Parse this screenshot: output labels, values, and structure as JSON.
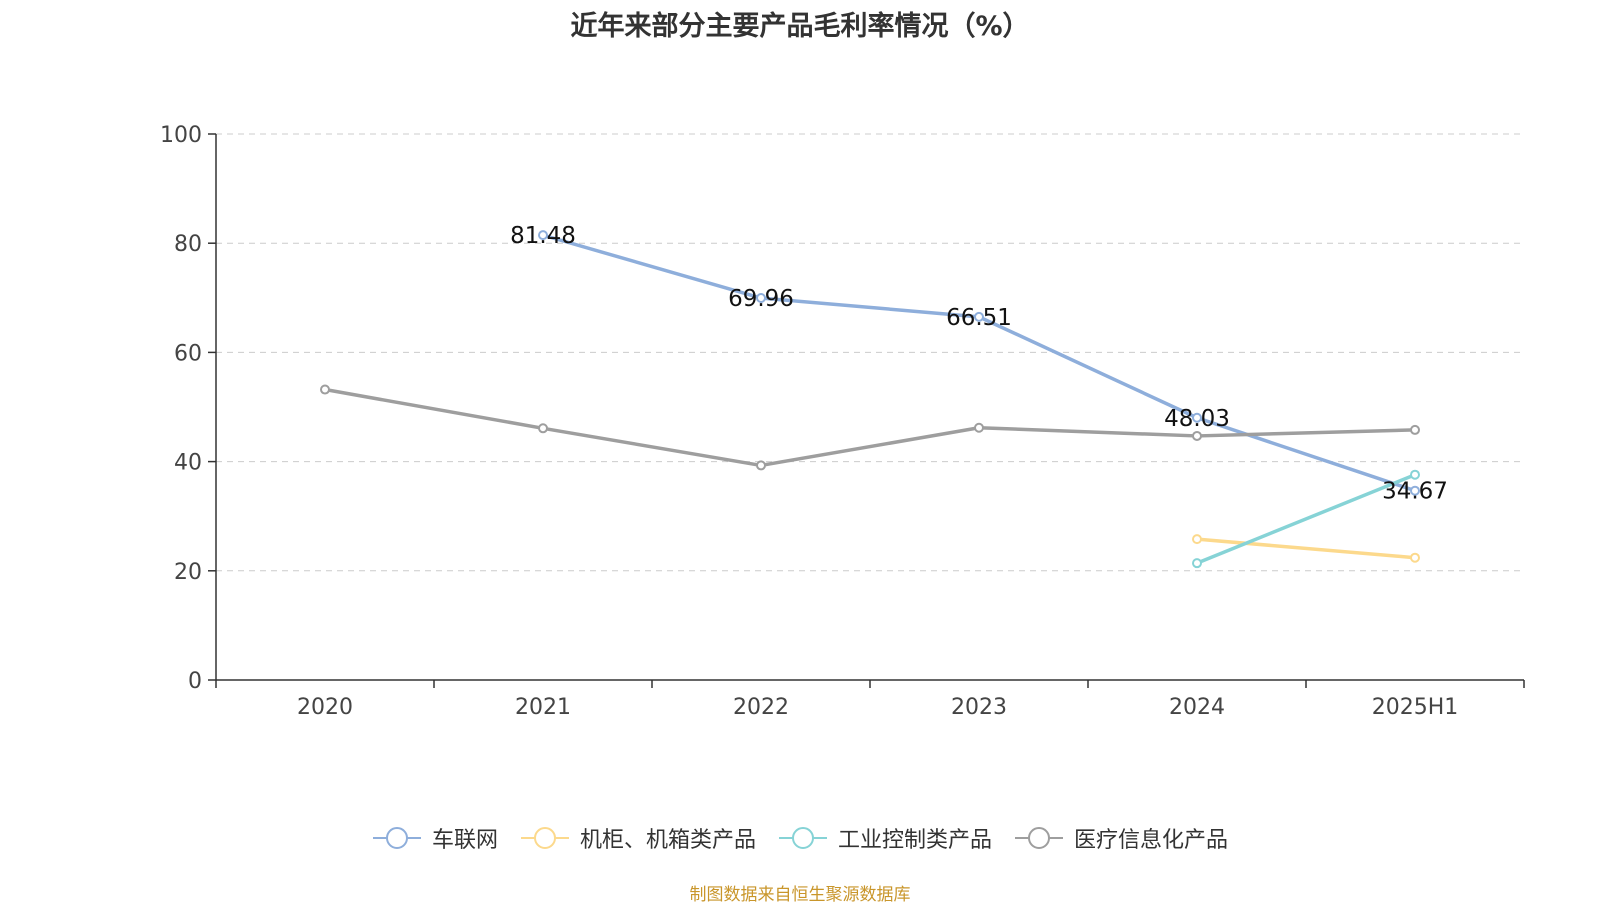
{
  "chart_data": {
    "type": "line",
    "title": "近年来部分主要产品毛利率情况（%）",
    "categories": [
      "2020",
      "2021",
      "2022",
      "2023",
      "2024",
      "2025H1"
    ],
    "ylim": [
      0,
      100
    ],
    "yticks": [
      0,
      20,
      40,
      60,
      80,
      100
    ],
    "grid": true,
    "legend_position": "bottom",
    "series": [
      {
        "name": "车联网",
        "color": "#8eaedb",
        "values": [
          null,
          81.48,
          69.96,
          66.51,
          48.03,
          34.67
        ],
        "labels": true
      },
      {
        "name": "机柜、机箱类产品",
        "color": "#fcd98c",
        "values": [
          null,
          null,
          null,
          null,
          25.8,
          22.4
        ],
        "labels": false
      },
      {
        "name": "工业控制类产品",
        "color": "#86d3d6",
        "values": [
          null,
          null,
          null,
          null,
          21.4,
          37.6
        ],
        "labels": false
      },
      {
        "name": "医疗信息化产品",
        "color": "#9e9e9e",
        "values": [
          53.2,
          46.1,
          39.3,
          46.2,
          44.7,
          45.8
        ],
        "labels": false
      }
    ]
  },
  "source_note": "制图数据来自恒生聚源数据库"
}
